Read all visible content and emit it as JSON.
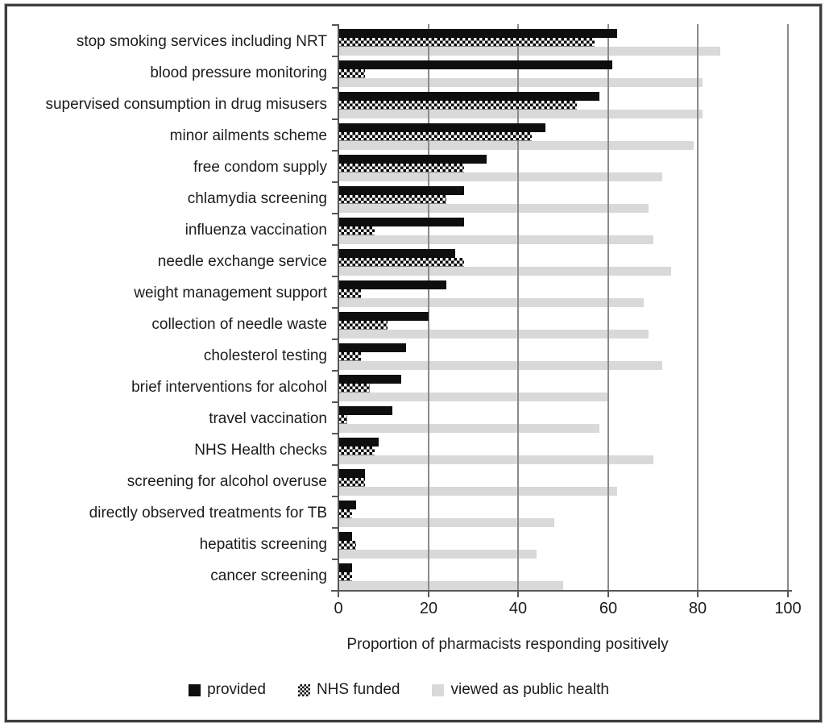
{
  "chart_data": {
    "type": "bar",
    "orientation": "horizontal",
    "title": "",
    "xlabel": "Proportion of pharmacists responding positively",
    "xlim": [
      0,
      100
    ],
    "xticks": [
      0,
      20,
      40,
      60,
      80,
      100
    ],
    "grid": "vertical",
    "legend_position": "bottom",
    "categories": [
      "stop smoking services including NRT",
      "blood pressure monitoring",
      "supervised consumption in drug misusers",
      "minor ailments scheme",
      "free condom supply",
      "chlamydia screening",
      "influenza vaccination",
      "needle exchange service",
      "weight management support",
      "collection of needle waste",
      "cholesterol testing",
      "brief interventions for alcohol",
      "travel vaccination",
      "NHS Health checks",
      "screening for alcohol overuse",
      "directly observed treatments for TB",
      "hepatitis screening",
      "cancer screening"
    ],
    "series": [
      {
        "name": "provided",
        "style": "solid-black",
        "values": [
          62,
          61,
          58,
          46,
          33,
          28,
          28,
          26,
          24,
          20,
          15,
          14,
          12,
          9,
          6,
          4,
          3,
          3
        ]
      },
      {
        "name": "NHS funded",
        "style": "crosshatch",
        "values": [
          57,
          6,
          53,
          43,
          28,
          24,
          8,
          28,
          5,
          11,
          5,
          7,
          2,
          8,
          6,
          3,
          4,
          3
        ]
      },
      {
        "name": "viewed as public health",
        "style": "light-gray",
        "values": [
          85,
          81,
          81,
          79,
          72,
          69,
          70,
          74,
          68,
          69,
          72,
          60,
          58,
          70,
          62,
          48,
          44,
          50
        ]
      }
    ]
  },
  "colors": {
    "bar_black": "#0e0e0e",
    "bar_gray": "#d9d9d9",
    "gridline": "#8a8a8a",
    "axis": "#565656",
    "frame_border": "#3e3e3e",
    "text": "#1c1c1c"
  }
}
